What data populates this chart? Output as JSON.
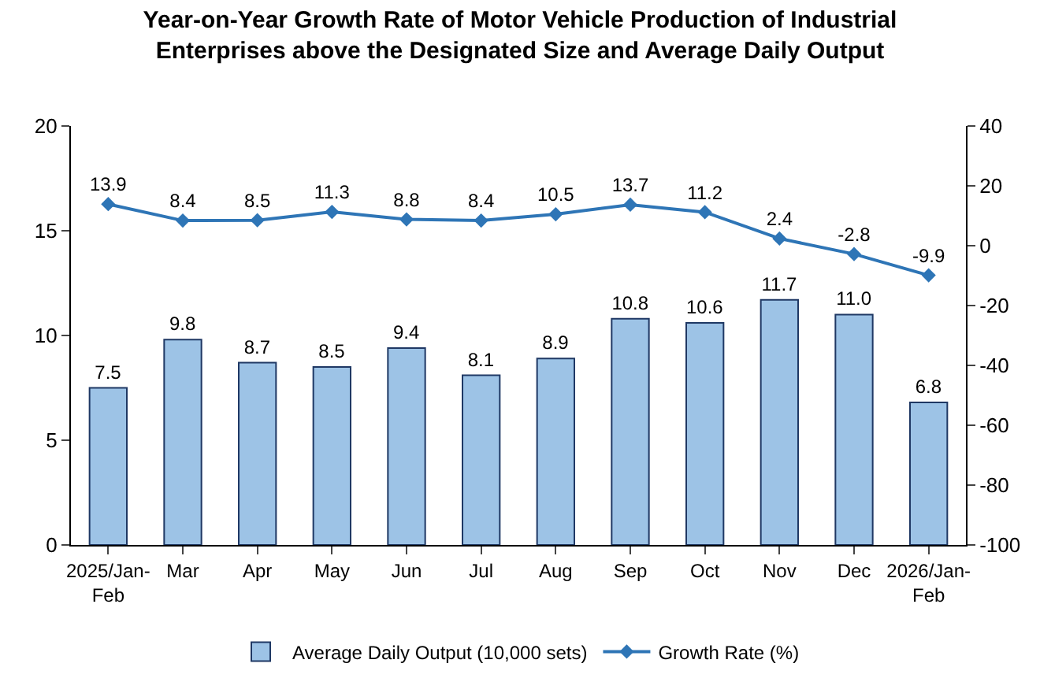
{
  "chart_data": {
    "type": "bar",
    "title": "Year-on-Year Growth Rate of Motor Vehicle Production of Industrial Enterprises above the Designated Size and Average Daily Output",
    "categories": [
      "2025/Jan-Feb",
      "Mar",
      "Apr",
      "May",
      "Jun",
      "Jul",
      "Aug",
      "Sep",
      "Oct",
      "Nov",
      "Dec",
      "2026/Jan-Feb"
    ],
    "series": [
      {
        "name": "Average Daily Output (10,000 sets)",
        "color": "#9dc3e6",
        "values": [
          7.5,
          9.8,
          8.7,
          8.5,
          9.4,
          8.1,
          8.9,
          10.8,
          10.6,
          11.7,
          11.0,
          6.8
        ],
        "value_labels": [
          "7.5",
          "9.8",
          "8.7",
          "8.5",
          "9.4",
          "8.1",
          "8.9",
          "10.8",
          "10.6",
          "11.7",
          "11.0",
          "6.8"
        ]
      },
      {
        "name": "Growth Rate (%)",
        "type": "line",
        "axis": "y2",
        "color": "#2e75b6",
        "marker": "diamond",
        "values": [
          13.9,
          8.4,
          8.5,
          11.3,
          8.8,
          8.4,
          10.5,
          13.7,
          11.2,
          2.4,
          -2.8,
          -9.9
        ]
      }
    ],
    "ylim": [
      0,
      20
    ],
    "yticks": [
      0,
      5,
      10,
      15,
      20
    ],
    "y2lim": [
      -100,
      40
    ],
    "y2ticks": [
      -100,
      -80,
      -60,
      -40,
      -20,
      0,
      20,
      40
    ],
    "data_labels": true,
    "legend": "bottom"
  }
}
